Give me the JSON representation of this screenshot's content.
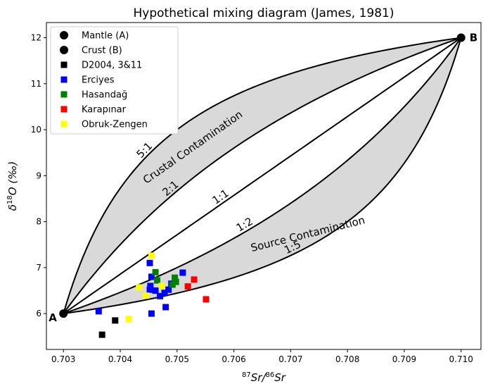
{
  "chart_data": {
    "type": "scatter",
    "title": "Hypothetical mixing diagram (James, 1981)",
    "xlabel_parts": {
      "sup1": "87",
      "base1": "Sr/",
      "sup2": "86",
      "base2": "Sr"
    },
    "ylabel_parts": {
      "delta": "δ",
      "sup": "18",
      "base": "O (‰)"
    },
    "xlim": [
      0.7027,
      0.71035
    ],
    "ylim": [
      5.22,
      12.33
    ],
    "x_ticks": [
      0.703,
      0.704,
      0.705,
      0.706,
      0.707,
      0.708,
      0.709,
      0.71
    ],
    "x_tick_labels": [
      "0.703",
      "0.704",
      "0.705",
      "0.706",
      "0.707",
      "0.708",
      "0.709",
      "0.710"
    ],
    "y_ticks": [
      6,
      7,
      8,
      9,
      10,
      11,
      12
    ],
    "y_tick_labels": [
      "6",
      "7",
      "8",
      "9",
      "10",
      "11",
      "12"
    ],
    "grid": false,
    "legend_position": "top-left",
    "colors": {
      "band": "#d9d9d9",
      "curve": "#000000",
      "Mantle (A)": "#000000",
      "Crust (B)": "#000000",
      "D2004, 3&11": "#000000",
      "Erciyes": "#0000ff",
      "Hasandağ": "#008000",
      "Karapınar": "#ff0000",
      "Obruk-Zengen": "#ffff00"
    },
    "endmembers": [
      {
        "name": "Mantle (A)",
        "label": "A",
        "x": 0.703,
        "y": 6.0
      },
      {
        "name": "Crust (B)",
        "label": "B",
        "x": 0.71,
        "y": 12.0
      }
    ],
    "mixing_curves": [
      {
        "label": "5:1",
        "r": 5
      },
      {
        "label": "2:1",
        "r": 2
      },
      {
        "label": "1:1",
        "r": 1
      },
      {
        "label": "1:2",
        "r": 0.5
      },
      {
        "label": "1:5",
        "r": 0.2
      }
    ],
    "region_labels": [
      "Crustal Contamination",
      "Source Contamination"
    ],
    "series": [
      {
        "name": "D2004, 3&11",
        "marker": "square",
        "x": [
          0.70368,
          0.70391
        ],
        "y": [
          5.54,
          5.85
        ]
      },
      {
        "name": "Erciyes",
        "marker": "square",
        "x": [
          0.70362,
          0.70452,
          0.70455,
          0.70453,
          0.70452,
          0.70462,
          0.7047,
          0.70478,
          0.70485,
          0.7049,
          0.70455,
          0.7051,
          0.7048
        ],
        "y": [
          6.05,
          7.1,
          6.8,
          6.6,
          6.52,
          6.5,
          6.38,
          6.45,
          6.52,
          6.65,
          6.0,
          6.89,
          6.14
        ]
      },
      {
        "name": "Hasandağ",
        "marker": "square",
        "x": [
          0.70462,
          0.70465,
          0.70492,
          0.70496,
          0.70498
        ],
        "y": [
          6.9,
          6.72,
          6.63,
          6.78,
          6.69
        ]
      },
      {
        "name": "Karapınar",
        "marker": "square",
        "x": [
          0.7053,
          0.70519,
          0.70551
        ],
        "y": [
          6.74,
          6.59,
          6.31
        ]
      },
      {
        "name": "Obruk-Zengen",
        "marker": "square",
        "x": [
          0.70455,
          0.70433,
          0.70445,
          0.70473,
          0.70415
        ],
        "y": [
          7.26,
          6.57,
          6.39,
          6.6,
          5.88
        ]
      }
    ]
  }
}
